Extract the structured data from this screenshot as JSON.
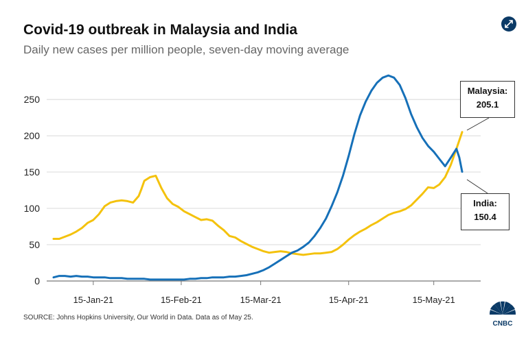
{
  "header": {
    "title": "Covid-19 outbreak in Malaysia and India",
    "subtitle": "Daily new cases per million people, seven-day moving average",
    "expand_icon": "expand-arrows-icon"
  },
  "footer": {
    "source": "SOURCE: Johns Hopkins University, Our World in Data. Data as of May 25.",
    "logo_text": "CNBC"
  },
  "callouts": {
    "malaysia": {
      "name": "Malaysia:",
      "value": "205.1"
    },
    "india": {
      "name": "India:",
      "value": "150.4"
    }
  },
  "colors": {
    "malaysia": "#f4c20d",
    "india": "#1670b8",
    "grid": "#d8d8d8",
    "axis": "#777777",
    "accent": "#0b3a66"
  },
  "chart_data": {
    "type": "line",
    "title": "Covid-19 outbreak in Malaysia and India",
    "subtitle": "Daily new cases per million people, seven-day moving average",
    "xlabel": "",
    "ylabel": "",
    "x_unit": "days since 1-Jan-21",
    "xlim": [
      0,
      144
    ],
    "ylim": [
      0,
      285
    ],
    "yticks": [
      0,
      50,
      100,
      150,
      200,
      250
    ],
    "xticks": [
      {
        "x": 14,
        "label": "15-Jan-21"
      },
      {
        "x": 45,
        "label": "15-Feb-21"
      },
      {
        "x": 73,
        "label": "15-Mar-21"
      },
      {
        "x": 104,
        "label": "15-Apr-21"
      },
      {
        "x": 134,
        "label": "15-May-21"
      }
    ],
    "grid": true,
    "series": [
      {
        "name": "Malaysia",
        "color": "#f4c20d",
        "x": [
          0,
          2,
          4,
          6,
          8,
          10,
          12,
          14,
          16,
          18,
          20,
          22,
          24,
          26,
          28,
          30,
          31,
          32,
          34,
          36,
          38,
          40,
          42,
          44,
          46,
          48,
          50,
          52,
          54,
          56,
          58,
          60,
          62,
          64,
          66,
          68,
          70,
          72,
          74,
          76,
          78,
          80,
          82,
          84,
          86,
          88,
          90,
          92,
          94,
          96,
          98,
          100,
          102,
          104,
          106,
          108,
          110,
          112,
          114,
          116,
          118,
          120,
          122,
          124,
          126,
          128,
          130,
          132,
          134,
          136,
          138,
          140,
          142,
          144
        ],
        "values": [
          58,
          58,
          61,
          64,
          68,
          73,
          80,
          84,
          92,
          103,
          108,
          110,
          111,
          110,
          108,
          117,
          127,
          138,
          143,
          145,
          128,
          114,
          106,
          102,
          96,
          92,
          88,
          84,
          85,
          83,
          76,
          70,
          62,
          60,
          55,
          51,
          47,
          44,
          41,
          39,
          40,
          41,
          40,
          38,
          37,
          36,
          37,
          38,
          38,
          39,
          40,
          44,
          50,
          57,
          63,
          68,
          72,
          77,
          81,
          86,
          91,
          94,
          96,
          99,
          104,
          112,
          120,
          129,
          128,
          133,
          143,
          160,
          182,
          205.1
        ]
      },
      {
        "name": "India",
        "color": "#1670b8",
        "x": [
          0,
          2,
          4,
          6,
          8,
          10,
          12,
          14,
          16,
          18,
          20,
          22,
          24,
          26,
          28,
          30,
          32,
          34,
          36,
          38,
          40,
          42,
          44,
          46,
          48,
          50,
          52,
          54,
          56,
          58,
          60,
          62,
          64,
          66,
          68,
          70,
          72,
          74,
          76,
          78,
          80,
          82,
          84,
          86,
          88,
          90,
          92,
          94,
          96,
          98,
          100,
          102,
          104,
          106,
          108,
          110,
          112,
          114,
          116,
          118,
          120,
          122,
          124,
          126,
          128,
          130,
          132,
          134,
          136,
          138,
          140,
          142,
          143,
          144
        ],
        "values": [
          5,
          7,
          7,
          6,
          7,
          6,
          6,
          5,
          5,
          5,
          4,
          4,
          4,
          3,
          3,
          3,
          3,
          2,
          2,
          2,
          2,
          2,
          2,
          2,
          3,
          3,
          4,
          4,
          5,
          5,
          5,
          6,
          6,
          7,
          8,
          10,
          12,
          15,
          19,
          24,
          29,
          34,
          39,
          42,
          47,
          53,
          62,
          73,
          86,
          103,
          122,
          145,
          172,
          202,
          228,
          247,
          262,
          273,
          280,
          283,
          280,
          270,
          252,
          230,
          212,
          197,
          186,
          178,
          168,
          158,
          170,
          182,
          170,
          150.4
        ]
      }
    ]
  }
}
